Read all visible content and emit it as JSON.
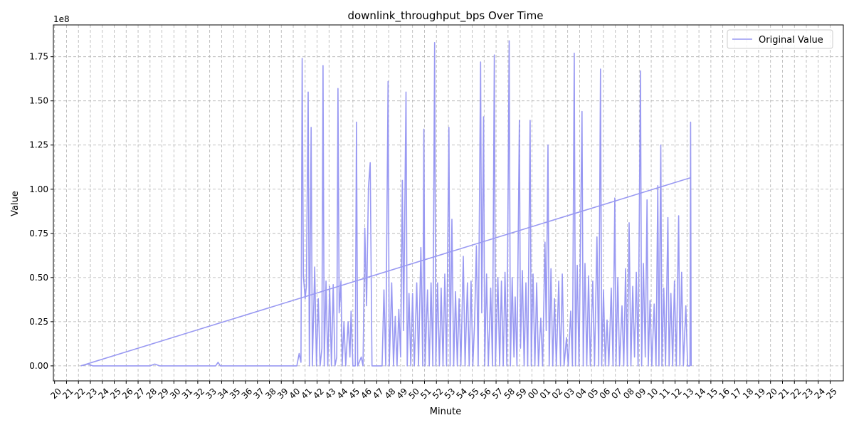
{
  "chart_data": {
    "type": "line",
    "title": "downlink_throughput_bps Over Time",
    "xlabel": "Minute",
    "ylabel": "Value",
    "y_exponent_label": "1e8",
    "y_scale": 100000000,
    "ylim": [
      -0.085,
      1.93
    ],
    "y_ticks": [
      0.0,
      0.25,
      0.5,
      0.75,
      1.0,
      1.25,
      1.5,
      1.75
    ],
    "y_tick_labels": [
      "0.00",
      "0.25",
      "0.50",
      "0.75",
      "1.00",
      "1.25",
      "1.50",
      "1.75"
    ],
    "x_tick_labels": [
      "20",
      "21",
      "22",
      "23",
      "24",
      "25",
      "26",
      "27",
      "28",
      "29",
      "30",
      "31",
      "32",
      "33",
      "34",
      "35",
      "36",
      "37",
      "38",
      "39",
      "40",
      "41",
      "42",
      "43",
      "44",
      "45",
      "46",
      "47",
      "48",
      "49",
      "50",
      "51",
      "52",
      "53",
      "54",
      "55",
      "56",
      "57",
      "58",
      "59",
      "00",
      "01",
      "02",
      "03",
      "04",
      "05",
      "06",
      "07",
      "08",
      "09",
      "10",
      "11",
      "12",
      "13",
      "14",
      "15",
      "16",
      "17",
      "18",
      "19",
      "20",
      "21",
      "22",
      "23",
      "24",
      "25"
    ],
    "xlim": [
      -0.1,
      66.1
    ],
    "grid": true,
    "legend_position": "top-right",
    "series": [
      {
        "name": "Original Value",
        "color": "#9999f2",
        "points": [
          [
            2.2,
            0.0
          ],
          [
            2.8,
            0.01
          ],
          [
            3.2,
            0.0
          ],
          [
            8.0,
            0.0
          ],
          [
            8.4,
            0.01
          ],
          [
            8.8,
            0.0
          ],
          [
            13.5,
            0.0
          ],
          [
            13.7,
            0.02
          ],
          [
            13.9,
            0.0
          ],
          [
            20.3,
            0.0
          ],
          [
            20.5,
            0.07
          ],
          [
            20.65,
            0.02
          ],
          [
            20.75,
            1.74
          ],
          [
            20.85,
            0.51
          ],
          [
            21.0,
            0.38
          ],
          [
            21.1,
            0.45
          ],
          [
            21.25,
            1.55
          ],
          [
            21.35,
            0.0
          ],
          [
            21.5,
            1.35
          ],
          [
            21.6,
            0.0
          ],
          [
            21.8,
            0.56
          ],
          [
            21.95,
            0.0
          ],
          [
            22.1,
            0.38
          ],
          [
            22.25,
            0.0
          ],
          [
            22.4,
            0.1
          ],
          [
            22.5,
            1.7
          ],
          [
            22.6,
            0.0
          ],
          [
            22.75,
            0.48
          ],
          [
            22.9,
            0.0
          ],
          [
            23.05,
            0.45
          ],
          [
            23.2,
            0.0
          ],
          [
            23.35,
            0.46
          ],
          [
            23.5,
            0.0
          ],
          [
            23.65,
            0.05
          ],
          [
            23.75,
            1.57
          ],
          [
            23.85,
            0.3
          ],
          [
            24.0,
            0.48
          ],
          [
            24.1,
            0.0
          ],
          [
            24.25,
            0.25
          ],
          [
            24.4,
            0.0
          ],
          [
            24.6,
            0.25
          ],
          [
            24.75,
            0.05
          ],
          [
            24.85,
            0.31
          ],
          [
            25.0,
            0.0
          ],
          [
            25.2,
            0.0
          ],
          [
            25.3,
            1.38
          ],
          [
            25.4,
            0.0
          ],
          [
            25.7,
            0.05
          ],
          [
            25.85,
            0.0
          ],
          [
            26.0,
            0.78
          ],
          [
            26.15,
            0.34
          ],
          [
            26.3,
            1.01
          ],
          [
            26.45,
            1.15
          ],
          [
            26.6,
            0.0
          ],
          [
            26.8,
            0.0
          ],
          [
            27.2,
            0.0
          ],
          [
            27.45,
            0.0
          ],
          [
            27.6,
            0.43
          ],
          [
            27.75,
            0.0
          ],
          [
            27.95,
            1.61
          ],
          [
            28.05,
            0.0
          ],
          [
            28.25,
            0.47
          ],
          [
            28.4,
            0.0
          ],
          [
            28.55,
            0.28
          ],
          [
            28.7,
            0.0
          ],
          [
            28.85,
            0.32
          ],
          [
            29.0,
            0.05
          ],
          [
            29.15,
            1.05
          ],
          [
            29.25,
            0.2
          ],
          [
            29.45,
            1.55
          ],
          [
            29.55,
            0.0
          ],
          [
            29.7,
            0.41
          ],
          [
            29.85,
            0.0
          ],
          [
            30.0,
            0.41
          ],
          [
            30.15,
            0.0
          ],
          [
            30.35,
            0.47
          ],
          [
            30.5,
            0.0
          ],
          [
            30.7,
            0.67
          ],
          [
            30.85,
            0.0
          ],
          [
            30.95,
            1.34
          ],
          [
            31.05,
            0.0
          ],
          [
            31.25,
            0.43
          ],
          [
            31.4,
            0.0
          ],
          [
            31.55,
            0.47
          ],
          [
            31.7,
            0.0
          ],
          [
            31.85,
            1.83
          ],
          [
            31.95,
            0.0
          ],
          [
            32.1,
            0.47
          ],
          [
            32.25,
            0.0
          ],
          [
            32.4,
            0.44
          ],
          [
            32.55,
            0.0
          ],
          [
            32.7,
            0.52
          ],
          [
            32.85,
            0.0
          ],
          [
            33.05,
            1.35
          ],
          [
            33.15,
            0.0
          ],
          [
            33.3,
            0.83
          ],
          [
            33.45,
            0.0
          ],
          [
            33.6,
            0.42
          ],
          [
            33.75,
            0.0
          ],
          [
            33.9,
            0.38
          ],
          [
            34.05,
            0.0
          ],
          [
            34.25,
            0.62
          ],
          [
            34.4,
            0.0
          ],
          [
            34.6,
            0.47
          ],
          [
            34.75,
            0.0
          ],
          [
            34.9,
            0.48
          ],
          [
            35.05,
            0.0
          ],
          [
            35.2,
            0.25
          ],
          [
            35.35,
            0.68
          ],
          [
            35.5,
            0.0
          ],
          [
            35.7,
            1.72
          ],
          [
            35.8,
            0.3
          ],
          [
            35.95,
            1.41
          ],
          [
            36.05,
            0.0
          ],
          [
            36.2,
            0.52
          ],
          [
            36.35,
            0.0
          ],
          [
            36.55,
            0.44
          ],
          [
            36.7,
            0.0
          ],
          [
            36.85,
            1.76
          ],
          [
            36.95,
            0.0
          ],
          [
            37.15,
            0.5
          ],
          [
            37.3,
            0.0
          ],
          [
            37.45,
            0.48
          ],
          [
            37.6,
            0.0
          ],
          [
            37.75,
            0.53
          ],
          [
            37.9,
            0.0
          ],
          [
            38.1,
            1.84
          ],
          [
            38.2,
            0.0
          ],
          [
            38.35,
            0.5
          ],
          [
            38.5,
            0.05
          ],
          [
            38.6,
            0.39
          ],
          [
            38.75,
            0.0
          ],
          [
            38.95,
            1.39
          ],
          [
            39.05,
            0.1
          ],
          [
            39.2,
            0.54
          ],
          [
            39.35,
            0.0
          ],
          [
            39.5,
            0.47
          ],
          [
            39.65,
            0.0
          ],
          [
            39.85,
            1.39
          ],
          [
            39.95,
            0.0
          ],
          [
            40.1,
            0.52
          ],
          [
            40.25,
            0.0
          ],
          [
            40.4,
            0.47
          ],
          [
            40.55,
            0.0
          ],
          [
            40.75,
            0.27
          ],
          [
            40.9,
            0.0
          ],
          [
            41.1,
            0.7
          ],
          [
            41.2,
            0.2
          ],
          [
            41.35,
            1.25
          ],
          [
            41.45,
            0.0
          ],
          [
            41.6,
            0.55
          ],
          [
            41.75,
            0.0
          ],
          [
            41.9,
            0.38
          ],
          [
            42.05,
            0.0
          ],
          [
            42.25,
            0.48
          ],
          [
            42.4,
            0.0
          ],
          [
            42.55,
            0.52
          ],
          [
            42.7,
            0.0
          ],
          [
            42.9,
            0.16
          ],
          [
            43.05,
            0.0
          ],
          [
            43.25,
            0.31
          ],
          [
            43.4,
            0.0
          ],
          [
            43.55,
            1.77
          ],
          [
            43.65,
            0.0
          ],
          [
            43.8,
            0.57
          ],
          [
            43.95,
            0.0
          ],
          [
            44.2,
            1.44
          ],
          [
            44.3,
            0.0
          ],
          [
            44.45,
            0.58
          ],
          [
            44.6,
            0.0
          ],
          [
            44.75,
            0.51
          ],
          [
            44.9,
            0.0
          ],
          [
            45.1,
            0.48
          ],
          [
            45.25,
            0.0
          ],
          [
            45.45,
            0.73
          ],
          [
            45.6,
            0.0
          ],
          [
            45.75,
            1.68
          ],
          [
            45.85,
            0.0
          ],
          [
            46.0,
            0.43
          ],
          [
            46.15,
            0.0
          ],
          [
            46.3,
            0.26
          ],
          [
            46.45,
            0.0
          ],
          [
            46.65,
            0.44
          ],
          [
            46.8,
            0.0
          ],
          [
            46.95,
            0.95
          ],
          [
            47.05,
            0.0
          ],
          [
            47.2,
            0.5
          ],
          [
            47.35,
            0.0
          ],
          [
            47.55,
            0.34
          ],
          [
            47.7,
            0.0
          ],
          [
            47.85,
            0.55
          ],
          [
            48.0,
            0.0
          ],
          [
            48.15,
            0.81
          ],
          [
            48.3,
            0.0
          ],
          [
            48.45,
            0.45
          ],
          [
            48.6,
            0.05
          ],
          [
            48.75,
            0.53
          ],
          [
            48.9,
            0.0
          ],
          [
            49.1,
            1.67
          ],
          [
            49.2,
            0.0
          ],
          [
            49.35,
            0.58
          ],
          [
            49.5,
            0.05
          ],
          [
            49.65,
            0.94
          ],
          [
            49.75,
            0.0
          ],
          [
            49.9,
            0.37
          ],
          [
            50.05,
            0.0
          ],
          [
            50.25,
            0.35
          ],
          [
            50.4,
            0.0
          ],
          [
            50.55,
            1.02
          ],
          [
            50.65,
            0.0
          ],
          [
            50.8,
            1.25
          ],
          [
            50.9,
            0.0
          ],
          [
            51.05,
            0.44
          ],
          [
            51.2,
            0.0
          ],
          [
            51.4,
            0.84
          ],
          [
            51.5,
            0.0
          ],
          [
            51.65,
            0.41
          ],
          [
            51.8,
            0.0
          ],
          [
            51.95,
            0.48
          ],
          [
            52.1,
            0.0
          ],
          [
            52.3,
            0.85
          ],
          [
            52.4,
            0.0
          ],
          [
            52.55,
            0.53
          ],
          [
            52.7,
            0.0
          ],
          [
            52.9,
            0.34
          ],
          [
            53.05,
            0.0
          ],
          [
            53.25,
            0.0
          ],
          [
            53.3,
            1.38
          ],
          [
            53.35,
            0.0
          ]
        ]
      },
      {
        "name": "",
        "color": "#9999f2",
        "points": [
          [
            2.2,
            0.0
          ],
          [
            53.3,
            1.065
          ]
        ]
      }
    ]
  }
}
